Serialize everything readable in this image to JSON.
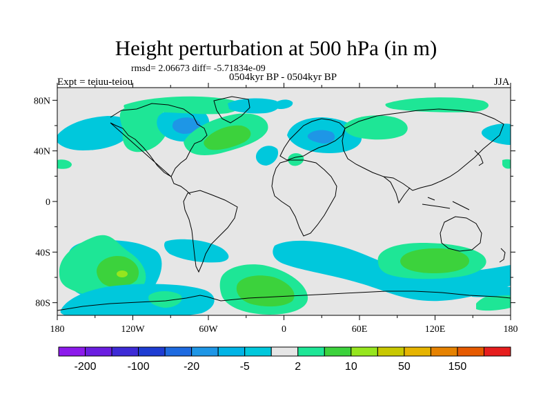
{
  "title": "Height perturbation at 500 hPa (in m)",
  "stats": "rmsd= 2.06673 diff= -5.71834e-09",
  "periods": "0504kyr BP - 0504kyr BP",
  "experiment": "Expt = teiuu-teiou",
  "season": "JJA",
  "map": {
    "projection": "cylindrical-equidistant",
    "lon_range": [
      -180,
      180
    ],
    "lat_range": [
      -90,
      90
    ],
    "background_color": "#e6e6e6",
    "lat_ticks": [
      {
        "value": 80,
        "label": "80N"
      },
      {
        "value": 40,
        "label": "40N"
      },
      {
        "value": 0,
        "label": "0"
      },
      {
        "value": -40,
        "label": "40S"
      },
      {
        "value": -80,
        "label": "80S"
      }
    ],
    "lon_ticks": [
      {
        "value": -180,
        "label": "180"
      },
      {
        "value": -120,
        "label": "120W"
      },
      {
        "value": -60,
        "label": "60W"
      },
      {
        "value": 0,
        "label": "0"
      },
      {
        "value": 60,
        "label": "60E"
      },
      {
        "value": 120,
        "label": "120E"
      },
      {
        "value": 180,
        "label": "180"
      }
    ]
  },
  "colorbar": {
    "colors": [
      "#8c1aeb",
      "#6a1ee0",
      "#3d2ad6",
      "#1e3cd2",
      "#1e6ae0",
      "#1e96e6",
      "#00b4e6",
      "#00c8dc",
      "#e6e6e6",
      "#1ee696",
      "#3cd23c",
      "#96e61e",
      "#c8c800",
      "#e6b400",
      "#e68200",
      "#e65a00",
      "#e61e1e"
    ],
    "labels": [
      {
        "index": 1,
        "text": "-200"
      },
      {
        "index": 3,
        "text": "-100"
      },
      {
        "index": 5,
        "text": "-20"
      },
      {
        "index": 7,
        "text": "-5"
      },
      {
        "index": 9,
        "text": "2"
      },
      {
        "index": 11,
        "text": "10"
      },
      {
        "index": 13,
        "text": "50"
      },
      {
        "index": 15,
        "text": "150"
      }
    ]
  },
  "anomaly_features": [
    {
      "sign": "negative",
      "lon": -125,
      "lat": -55,
      "level": "cyan"
    },
    {
      "sign": "positive",
      "lon": -125,
      "lat": -55,
      "level": "green"
    },
    {
      "sign": "positive",
      "lon": -125,
      "lat": -57,
      "level": "yellow-green"
    },
    {
      "sign": "negative",
      "lon": -50,
      "lat": -38,
      "level": "cyan"
    },
    {
      "sign": "negative",
      "lon": -90,
      "lat": -78,
      "level": "cyan"
    },
    {
      "sign": "positive",
      "lon": -25,
      "lat": -72,
      "level": "green"
    },
    {
      "sign": "negative",
      "lon": 40,
      "lat": -45,
      "level": "cyan"
    },
    {
      "sign": "negative",
      "lon": 110,
      "lat": -60,
      "level": "cyan"
    },
    {
      "sign": "positive",
      "lon": 115,
      "lat": -42,
      "level": "green"
    },
    {
      "sign": "positive",
      "lon": 170,
      "lat": -78,
      "level": "green"
    },
    {
      "sign": "negative",
      "lon": -145,
      "lat": 55,
      "level": "cyan"
    },
    {
      "sign": "positive",
      "lon": -110,
      "lat": 72,
      "level": "teal-green"
    },
    {
      "sign": "negative",
      "lon": -95,
      "lat": 65,
      "level": "cyan"
    },
    {
      "sign": "positive",
      "lon": -40,
      "lat": 55,
      "level": "green"
    },
    {
      "sign": "negative",
      "lon": -35,
      "lat": 80,
      "level": "cyan"
    },
    {
      "sign": "negative",
      "lon": 25,
      "lat": 55,
      "level": "cyan"
    },
    {
      "sign": "positive",
      "lon": 50,
      "lat": 63,
      "level": "teal-green"
    },
    {
      "sign": "negative",
      "lon": -15,
      "lat": 38,
      "level": "cyan"
    },
    {
      "sign": "positive",
      "lon": 10,
      "lat": 38,
      "level": "teal-green"
    },
    {
      "sign": "positive",
      "lon": 115,
      "lat": 75,
      "level": "teal-green"
    },
    {
      "sign": "negative",
      "lon": 160,
      "lat": 50,
      "level": "cyan"
    }
  ]
}
